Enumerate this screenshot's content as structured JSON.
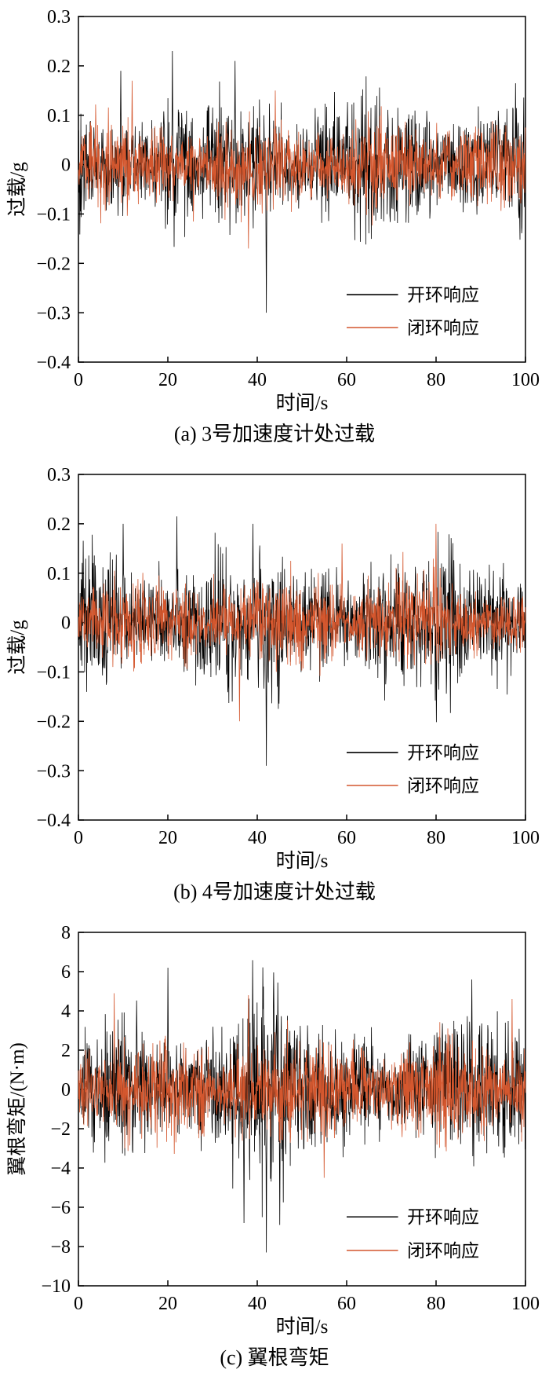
{
  "page": {
    "background": "#ffffff",
    "open_loop_color": "#000000",
    "closed_loop_color": "#d4572e"
  },
  "chart_data": [
    {
      "id": "a",
      "type": "line",
      "caption": "(a) 3号加速度计处过载",
      "xlabel": "时间/s",
      "ylabel": "过载/g",
      "xlim": [
        0,
        100
      ],
      "ylim": [
        -0.4,
        0.3
      ],
      "xticks": [
        0,
        20,
        40,
        60,
        80,
        100
      ],
      "yticks": [
        0.3,
        0.2,
        0.1,
        0,
        -0.1,
        -0.2,
        -0.3,
        -0.4
      ],
      "ydecimals": 1,
      "grid": false,
      "legend_position": "bottom-right",
      "series": [
        {
          "name": "开环响应",
          "color": "#000000",
          "amp": 0.055,
          "seed": 101,
          "n": 1300,
          "env": {
            "slow_period": 37,
            "slow_frac": 0.25,
            "fast_period": 11,
            "fast_frac": 0.15
          },
          "spikes": [
            {
              "t": 42,
              "v": -0.3
            },
            {
              "t": 21,
              "v": 0.23
            },
            {
              "t": 9.5,
              "v": 0.19
            },
            {
              "t": 35,
              "v": 0.21
            }
          ]
        },
        {
          "name": "闭环响应",
          "color": "#d4572e",
          "amp": 0.038,
          "seed": 202,
          "n": 1300,
          "env": {
            "slow_period": 29,
            "slow_frac": 0.2,
            "fast_period": 7,
            "fast_frac": 0.15
          },
          "spikes": [
            {
              "t": 12,
              "v": 0.17
            },
            {
              "t": 38,
              "v": -0.17
            },
            {
              "t": 44,
              "v": 0.15
            }
          ]
        }
      ]
    },
    {
      "id": "b",
      "type": "line",
      "caption": "(b) 4号加速度计处过载",
      "xlabel": "时间/s",
      "ylabel": "过载/g",
      "xlim": [
        0,
        100
      ],
      "ylim": [
        -0.4,
        0.3
      ],
      "xticks": [
        0,
        20,
        40,
        60,
        80,
        100
      ],
      "yticks": [
        0.3,
        0.2,
        0.1,
        0,
        -0.1,
        -0.2,
        -0.3,
        -0.4
      ],
      "ydecimals": 1,
      "grid": false,
      "legend_position": "bottom-right",
      "series": [
        {
          "name": "开环响应",
          "color": "#000000",
          "amp": 0.055,
          "seed": 303,
          "n": 1300,
          "env": {
            "slow_period": 41,
            "slow_frac": 0.25,
            "fast_period": 13,
            "fast_frac": 0.15
          },
          "spikes": [
            {
              "t": 42,
              "v": -0.29
            },
            {
              "t": 22,
              "v": 0.215
            },
            {
              "t": 10,
              "v": 0.2
            },
            {
              "t": 39,
              "v": 0.2
            }
          ]
        },
        {
          "name": "闭环响应",
          "color": "#d4572e",
          "amp": 0.038,
          "seed": 404,
          "n": 1300,
          "env": {
            "slow_period": 31,
            "slow_frac": 0.2,
            "fast_period": 8,
            "fast_frac": 0.15
          },
          "spikes": [
            {
              "t": 80,
              "v": 0.2
            },
            {
              "t": 36,
              "v": -0.2
            },
            {
              "t": 59,
              "v": 0.16
            }
          ]
        }
      ]
    },
    {
      "id": "c",
      "type": "line",
      "caption": "(c) 翼根弯矩",
      "xlabel": "时间/s",
      "ylabel": "翼根弯矩/(N·m)",
      "xlim": [
        0,
        100
      ],
      "ylim": [
        -10,
        8
      ],
      "xticks": [
        0,
        20,
        40,
        60,
        80,
        100
      ],
      "yticks": [
        8,
        6,
        4,
        2,
        0,
        -2,
        -4,
        -6,
        -8,
        -10
      ],
      "ydecimals": 0,
      "grid": false,
      "legend_position": "bottom-right",
      "series": [
        {
          "name": "开环响应",
          "color": "#000000",
          "amp": 1.35,
          "seed": 505,
          "n": 1400,
          "env": {
            "slow_period": 43,
            "slow_frac": 0.25,
            "fast_period": 17,
            "fast_frac": 0.15,
            "bump_t": 40,
            "bump_w": 7,
            "bump_frac": 0.8
          },
          "spikes": [
            {
              "t": 42,
              "v": -8.3
            },
            {
              "t": 20,
              "v": 6.2
            },
            {
              "t": 37,
              "v": -6.8
            },
            {
              "t": 88,
              "v": 5.6
            },
            {
              "t": 45,
              "v": -6.9
            }
          ]
        },
        {
          "name": "闭环响应",
          "color": "#d4572e",
          "amp": 1.05,
          "seed": 606,
          "n": 1400,
          "env": {
            "slow_period": 31,
            "slow_frac": 0.2,
            "fast_period": 9,
            "fast_frac": 0.15
          },
          "spikes": [
            {
              "t": 8,
              "v": 4.9
            },
            {
              "t": 38,
              "v": 4.8
            },
            {
              "t": 97,
              "v": 4.6
            },
            {
              "t": 55,
              "v": -4.5
            }
          ]
        }
      ]
    }
  ]
}
